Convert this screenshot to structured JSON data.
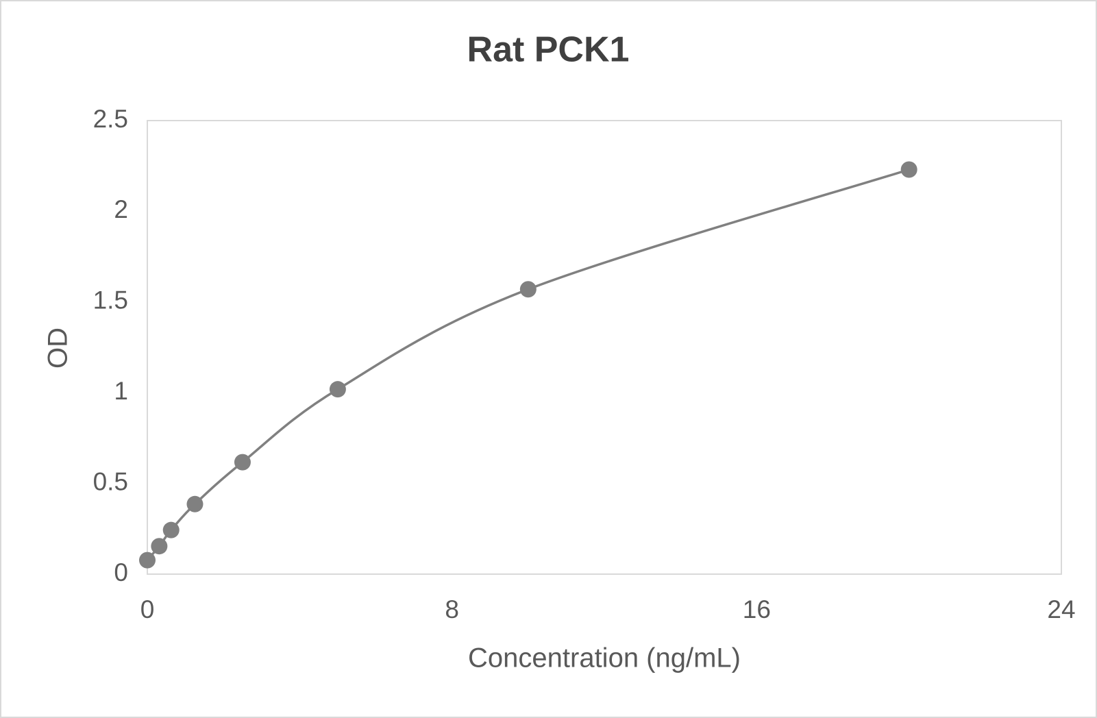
{
  "chart_data": {
    "type": "line",
    "title": "Rat PCK1",
    "x_label": "Concentration (ng/mL)",
    "y_label": "OD",
    "x": [
      0,
      0.3125,
      0.625,
      1.25,
      2.5,
      5,
      10,
      20
    ],
    "values": [
      0.077,
      0.154,
      0.243,
      0.386,
      0.617,
      1.019,
      1.57,
      2.23
    ],
    "color": "#808080",
    "smooth": true,
    "markers": true,
    "xlim": [
      0,
      24
    ],
    "xticks": [
      0,
      8,
      16,
      24
    ],
    "ylim": [
      0,
      2.5
    ],
    "yticks": [
      0,
      0.5,
      1,
      1.5,
      2,
      2.5
    ],
    "grid": false
  }
}
